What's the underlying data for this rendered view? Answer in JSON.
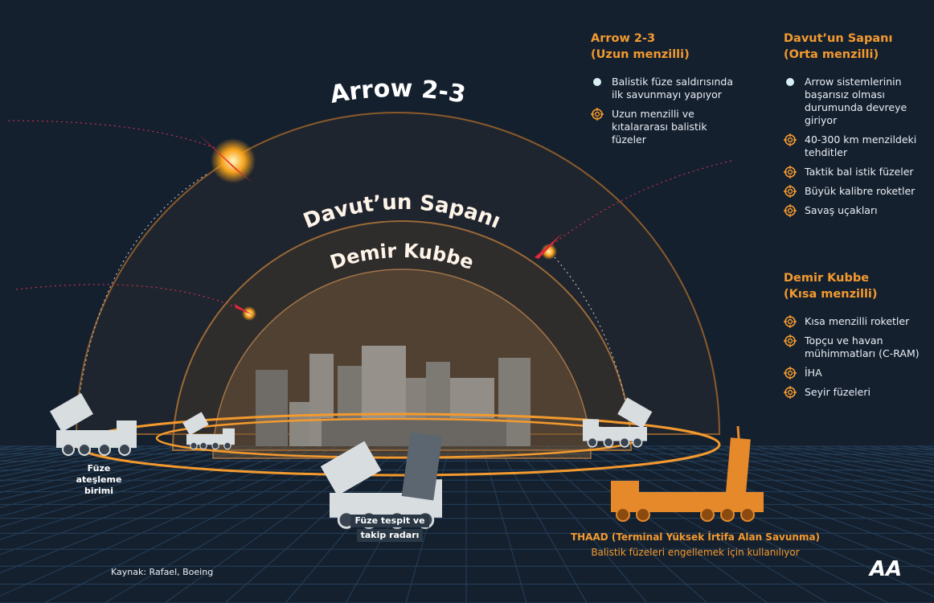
{
  "arcs": {
    "outer": "Arrow 2-3",
    "middle": "Davut’un Sapanı",
    "inner": "Demir Kubbe"
  },
  "panels": [
    {
      "heading": [
        "Arrow 2-3",
        "(Uzun menzilli)"
      ],
      "items": [
        {
          "icon": "dot",
          "text": "Balistik füze saldırısında ilk savunmayı yapıyor"
        },
        {
          "icon": "target",
          "text": "Uzun menzilli ve kıtalararası balistik füzeler"
        }
      ]
    },
    {
      "heading": [
        "Davut’un Sapanı",
        "(Orta menzilli)"
      ],
      "items": [
        {
          "icon": "dot",
          "text": "Arrow sistemlerinin başarısız olması durumunda devreye giriyor"
        },
        {
          "icon": "target",
          "text": "40-300 km menzildeki tehditler"
        },
        {
          "icon": "target",
          "text": "Taktik bal istik füzeler"
        },
        {
          "icon": "target",
          "text": "Büyük kalibre roketler"
        },
        {
          "icon": "target",
          "text": "Savaş uçakları"
        }
      ]
    },
    {
      "heading": [
        "Demir Kubbe",
        "(Kısa menzilli)"
      ],
      "items": [
        {
          "icon": "target",
          "text": "Kısa menzilli roketler"
        },
        {
          "icon": "target",
          "text": "Topçu ve havan mühimmatları (C-RAM)"
        },
        {
          "icon": "target",
          "text": "İHA"
        },
        {
          "icon": "target",
          "text": "Seyir füzeleri"
        }
      ]
    }
  ],
  "launcher_label": "Füze ateşleme birimi",
  "radar_label": [
    "Füze tespit ve",
    "takip radarı"
  ],
  "thaad": {
    "title": "THAAD (Terminal Yüksek İrtifa Alan Savunma)",
    "subtitle": "Balistik füzeleri engellemek için kullanılıyor"
  },
  "source": "Kaynak: Rafael, Boeing",
  "logo": "AA"
}
